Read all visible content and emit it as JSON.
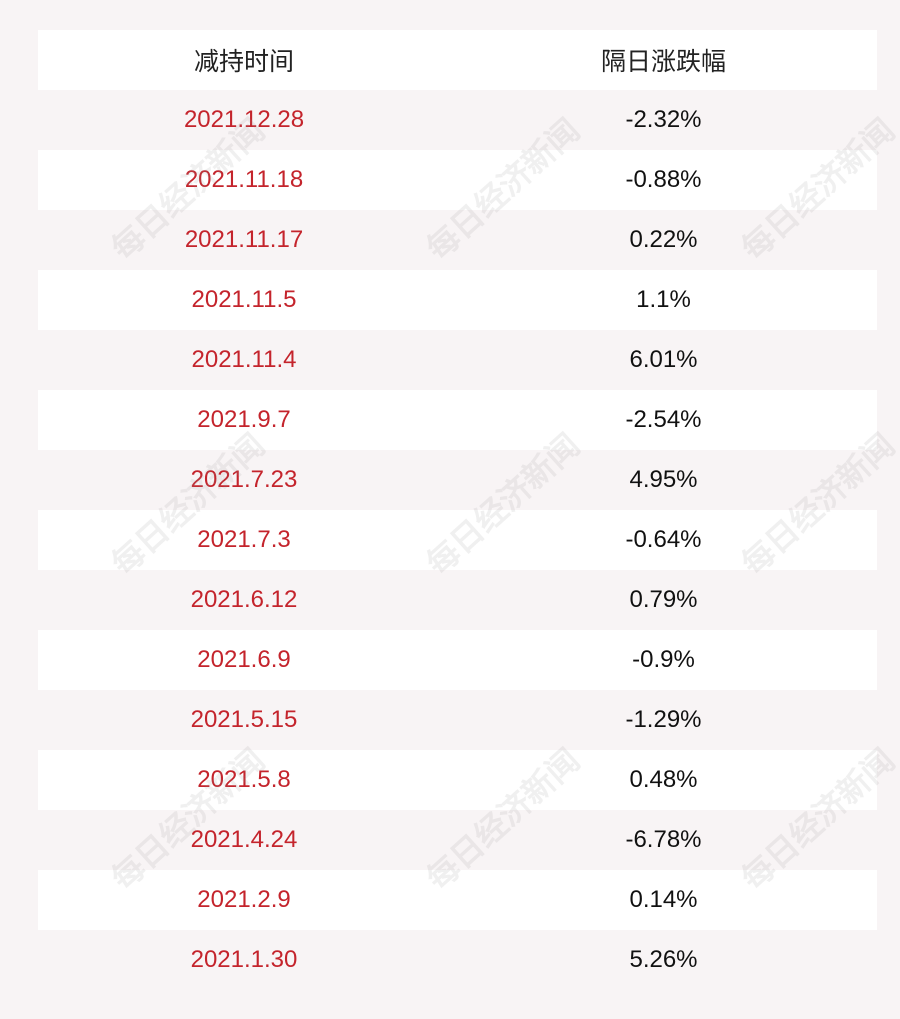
{
  "table": {
    "headers": [
      "减持时间",
      "隔日涨跌幅"
    ],
    "rows": [
      {
        "date": "2021.12.28",
        "change": "-2.32%"
      },
      {
        "date": "2021.11.18",
        "change": "-0.88%"
      },
      {
        "date": "2021.11.17",
        "change": "0.22%"
      },
      {
        "date": "2021.11.5",
        "change": "1.1%"
      },
      {
        "date": "2021.11.4",
        "change": "6.01%"
      },
      {
        "date": "2021.9.7",
        "change": "-2.54%"
      },
      {
        "date": "2021.7.23",
        "change": "4.95%"
      },
      {
        "date": "2021.7.3",
        "change": "-0.64%"
      },
      {
        "date": "2021.6.12",
        "change": "0.79%"
      },
      {
        "date": "2021.6.9",
        "change": "-0.9%"
      },
      {
        "date": "2021.5.15",
        "change": "-1.29%"
      },
      {
        "date": "2021.5.8",
        "change": "0.48%"
      },
      {
        "date": "2021.4.24",
        "change": "-6.78%"
      },
      {
        "date": "2021.2.9",
        "change": "0.14%"
      },
      {
        "date": "2021.1.30",
        "change": "5.26%"
      }
    ]
  },
  "watermark": "每日经济新闻",
  "colors": {
    "date_text": "#c4242c",
    "value_text": "#111111",
    "stripe": "#ffffff",
    "background": "#f8f4f5"
  }
}
